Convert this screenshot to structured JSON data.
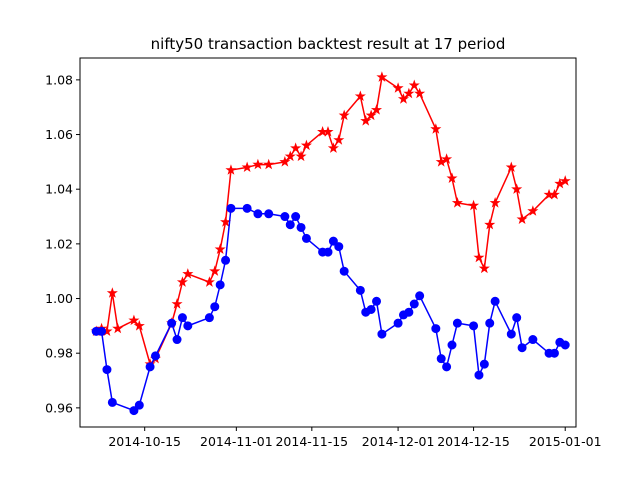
{
  "chart_data": {
    "type": "line",
    "title": "nifty50 transaction backtest result at 17 period",
    "xlabel": "",
    "ylabel": "",
    "x_ticks": [
      "2014-10-15",
      "2014-11-01",
      "2014-11-15",
      "2014-12-01",
      "2014-12-15",
      "2015-01-01"
    ],
    "y_ticks": [
      "0.96",
      "0.98",
      "1.00",
      "1.02",
      "1.04",
      "1.06",
      "1.08"
    ],
    "xlim": [
      "2014-10-03",
      "2015-01-03"
    ],
    "ylim": [
      0.953,
      1.088
    ],
    "grid": false,
    "legend": "none",
    "series": [
      {
        "color": "#ff0000",
        "marker": "star",
        "points": [
          [
            "2014-10-06",
            0.988
          ],
          [
            "2014-10-07",
            0.989
          ],
          [
            "2014-10-08",
            0.988
          ],
          [
            "2014-10-09",
            1.002
          ],
          [
            "2014-10-10",
            0.989
          ],
          [
            "2014-10-13",
            0.992
          ],
          [
            "2014-10-14",
            0.99
          ],
          [
            "2014-10-16",
            0.976
          ],
          [
            "2014-10-17",
            0.978
          ],
          [
            "2014-10-20",
            0.991
          ],
          [
            "2014-10-21",
            0.998
          ],
          [
            "2014-10-22",
            1.006
          ],
          [
            "2014-10-23",
            1.009
          ],
          [
            "2014-10-27",
            1.006
          ],
          [
            "2014-10-28",
            1.01
          ],
          [
            "2014-10-29",
            1.018
          ],
          [
            "2014-10-30",
            1.028
          ],
          [
            "2014-10-31",
            1.047
          ],
          [
            "2014-11-03",
            1.048
          ],
          [
            "2014-11-05",
            1.049
          ],
          [
            "2014-11-07",
            1.049
          ],
          [
            "2014-11-10",
            1.05
          ],
          [
            "2014-11-11",
            1.052
          ],
          [
            "2014-11-12",
            1.055
          ],
          [
            "2014-11-13",
            1.052
          ],
          [
            "2014-11-14",
            1.056
          ],
          [
            "2014-11-17",
            1.061
          ],
          [
            "2014-11-18",
            1.061
          ],
          [
            "2014-11-19",
            1.055
          ],
          [
            "2014-11-20",
            1.058
          ],
          [
            "2014-11-21",
            1.067
          ],
          [
            "2014-11-24",
            1.074
          ],
          [
            "2014-11-25",
            1.065
          ],
          [
            "2014-11-26",
            1.067
          ],
          [
            "2014-11-27",
            1.069
          ],
          [
            "2014-11-28",
            1.081
          ],
          [
            "2014-12-01",
            1.077
          ],
          [
            "2014-12-02",
            1.073
          ],
          [
            "2014-12-03",
            1.075
          ],
          [
            "2014-12-04",
            1.078
          ],
          [
            "2014-12-05",
            1.075
          ],
          [
            "2014-12-08",
            1.062
          ],
          [
            "2014-12-09",
            1.05
          ],
          [
            "2014-12-10",
            1.051
          ],
          [
            "2014-12-11",
            1.044
          ],
          [
            "2014-12-12",
            1.035
          ],
          [
            "2014-12-15",
            1.034
          ],
          [
            "2014-12-16",
            1.015
          ],
          [
            "2014-12-17",
            1.011
          ],
          [
            "2014-12-18",
            1.027
          ],
          [
            "2014-12-19",
            1.035
          ],
          [
            "2014-12-22",
            1.048
          ],
          [
            "2014-12-23",
            1.04
          ],
          [
            "2014-12-24",
            1.029
          ],
          [
            "2014-12-26",
            1.032
          ],
          [
            "2014-12-29",
            1.038
          ],
          [
            "2014-12-30",
            1.038
          ],
          [
            "2014-12-31",
            1.042
          ],
          [
            "2015-01-01",
            1.043
          ]
        ]
      },
      {
        "color": "#0000ff",
        "marker": "circle",
        "points": [
          [
            "2014-10-06",
            0.988
          ],
          [
            "2014-10-07",
            0.988
          ],
          [
            "2014-10-08",
            0.974
          ],
          [
            "2014-10-09",
            0.962
          ],
          [
            "2014-10-13",
            0.959
          ],
          [
            "2014-10-14",
            0.961
          ],
          [
            "2014-10-16",
            0.975
          ],
          [
            "2014-10-17",
            0.979
          ],
          [
            "2014-10-20",
            0.991
          ],
          [
            "2014-10-21",
            0.985
          ],
          [
            "2014-10-22",
            0.993
          ],
          [
            "2014-10-23",
            0.99
          ],
          [
            "2014-10-27",
            0.993
          ],
          [
            "2014-10-28",
            0.997
          ],
          [
            "2014-10-29",
            1.005
          ],
          [
            "2014-10-30",
            1.014
          ],
          [
            "2014-10-31",
            1.033
          ],
          [
            "2014-11-03",
            1.033
          ],
          [
            "2014-11-05",
            1.031
          ],
          [
            "2014-11-07",
            1.031
          ],
          [
            "2014-11-10",
            1.03
          ],
          [
            "2014-11-11",
            1.027
          ],
          [
            "2014-11-12",
            1.03
          ],
          [
            "2014-11-13",
            1.026
          ],
          [
            "2014-11-14",
            1.022
          ],
          [
            "2014-11-17",
            1.017
          ],
          [
            "2014-11-18",
            1.017
          ],
          [
            "2014-11-19",
            1.021
          ],
          [
            "2014-11-20",
            1.019
          ],
          [
            "2014-11-21",
            1.01
          ],
          [
            "2014-11-24",
            1.003
          ],
          [
            "2014-11-25",
            0.995
          ],
          [
            "2014-11-26",
            0.996
          ],
          [
            "2014-11-27",
            0.999
          ],
          [
            "2014-11-28",
            0.987
          ],
          [
            "2014-12-01",
            0.991
          ],
          [
            "2014-12-02",
            0.994
          ],
          [
            "2014-12-03",
            0.995
          ],
          [
            "2014-12-04",
            0.998
          ],
          [
            "2014-12-05",
            1.001
          ],
          [
            "2014-12-08",
            0.989
          ],
          [
            "2014-12-09",
            0.978
          ],
          [
            "2014-12-10",
            0.975
          ],
          [
            "2014-12-11",
            0.983
          ],
          [
            "2014-12-12",
            0.991
          ],
          [
            "2014-12-15",
            0.99
          ],
          [
            "2014-12-16",
            0.972
          ],
          [
            "2014-12-17",
            0.976
          ],
          [
            "2014-12-18",
            0.991
          ],
          [
            "2014-12-19",
            0.999
          ],
          [
            "2014-12-22",
            0.987
          ],
          [
            "2014-12-23",
            0.993
          ],
          [
            "2014-12-24",
            0.982
          ],
          [
            "2014-12-26",
            0.985
          ],
          [
            "2014-12-29",
            0.98
          ],
          [
            "2014-12-30",
            0.98
          ],
          [
            "2014-12-31",
            0.984
          ],
          [
            "2015-01-01",
            0.983
          ]
        ]
      }
    ]
  }
}
